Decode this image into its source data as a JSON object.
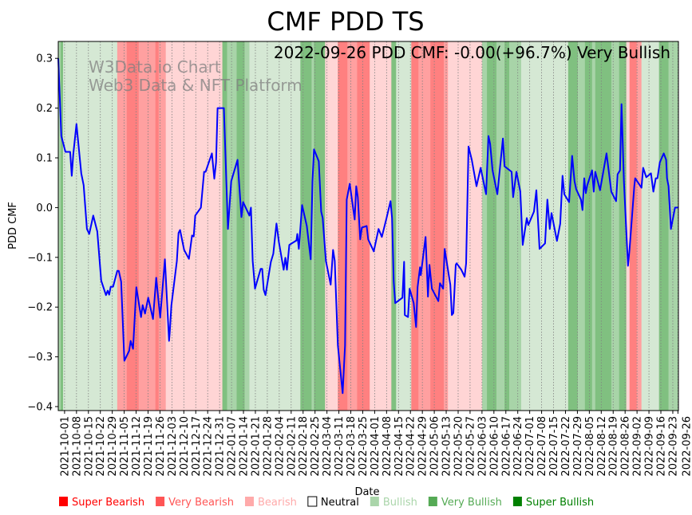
{
  "chart_data": {
    "type": "line",
    "title": "CMF PDD TS",
    "annotation": "2022-09-26 PDD CMF: -0.00(+96.7%) Very Bullish",
    "watermark": [
      "W3Data.io Chart",
      "Web3 Data & NFT Platform"
    ],
    "xlabel": "Date",
    "ylabel": "PDD CMF",
    "x_units": "days since 2021-10-01",
    "xlim": [
      -3.7,
      360.3
    ],
    "ylim": [
      -0.408,
      0.334
    ],
    "yticks": [
      0.3,
      0.2,
      0.1,
      0.0,
      -0.1,
      -0.2,
      -0.3,
      -0.4
    ],
    "ytick_labels": [
      "0.3",
      "0.2",
      "0.1",
      "0.0",
      "−0.1",
      "−0.2",
      "−0.3",
      "−0.4"
    ],
    "xticks": [
      0,
      7,
      14,
      21,
      28,
      35,
      42,
      49,
      56,
      63,
      70,
      77,
      84,
      91,
      98,
      105,
      112,
      119,
      126,
      133,
      140,
      147,
      154,
      161,
      168,
      175,
      182,
      189,
      196,
      203,
      210,
      217,
      224,
      231,
      238,
      245,
      252,
      259,
      266,
      273,
      280,
      287,
      294,
      301,
      308,
      315,
      322,
      329,
      336,
      343,
      350,
      357,
      360
    ],
    "xtick_labels": [
      "2021-10-01",
      "2021-10-08",
      "2021-10-15",
      "2021-10-22",
      "2021-10-29",
      "2021-11-05",
      "2021-11-12",
      "2021-11-19",
      "2021-11-26",
      "2021-12-03",
      "2021-12-10",
      "2021-12-17",
      "2021-12-24",
      "2021-12-31",
      "2022-01-07",
      "2022-01-14",
      "2022-01-21",
      "2022-01-28",
      "2022-02-04",
      "2022-02-11",
      "2022-02-18",
      "2022-02-25",
      "2022-03-04",
      "2022-03-11",
      "2022-03-18",
      "2022-03-25",
      "2022-04-01",
      "2022-04-08",
      "2022-04-15",
      "2022-04-22",
      "2022-04-29",
      "2022-05-06",
      "2022-05-13",
      "2022-05-20",
      "2022-05-27",
      "2022-06-03",
      "2022-06-10",
      "2022-06-17",
      "2022-06-24",
      "2022-07-01",
      "2022-07-08",
      "2022-07-15",
      "2022-07-22",
      "2022-07-29",
      "2022-08-05",
      "2022-08-12",
      "2022-08-19",
      "2022-08-26",
      "2022-09-02",
      "2022-09-09",
      "2022-09-16",
      "2022-09-23",
      "2022-09-26"
    ],
    "grid": "vertical dotted at x ticks",
    "legend_placement": "bottom",
    "legend": [
      {
        "label": "Super Bearish",
        "key": "super_bearish",
        "color": "#ff0000"
      },
      {
        "label": "Very Bearish",
        "key": "very_bearish",
        "color": "#ff5555"
      },
      {
        "label": "Bearish",
        "key": "bearish",
        "color": "#ffaaaa"
      },
      {
        "label": "Neutral",
        "key": "neutral",
        "color": "#ffffff"
      },
      {
        "label": "Bullish",
        "key": "bullish",
        "color": "#aad5aa"
      },
      {
        "label": "Very Bullish",
        "key": "very_bullish",
        "color": "#55aa55"
      },
      {
        "label": "Super Bullish",
        "key": "super_bullish",
        "color": "#008000"
      }
    ],
    "band_colors": {
      "bearish": "#ffd5d5",
      "very_bearish": "#ffa0a0",
      "super_bearish": "#ff8080",
      "bullish": "#d5e8d4",
      "very_bullish": "#a8d4a8",
      "super_bullish": "#80c080"
    },
    "bands": [
      [
        -3.7,
        -2.3,
        "very_bullish"
      ],
      [
        -2.3,
        -0.9,
        "super_bullish"
      ],
      [
        -0.9,
        30.9,
        "bullish"
      ],
      [
        30.9,
        36.5,
        "very_bearish"
      ],
      [
        36.5,
        43.5,
        "super_bearish"
      ],
      [
        43.5,
        49.6,
        "very_bearish"
      ],
      [
        49.6,
        53.3,
        "very_bearish"
      ],
      [
        53.3,
        55.2,
        "super_bearish"
      ],
      [
        55.2,
        59.4,
        "very_bearish"
      ],
      [
        59.4,
        92.6,
        "bearish"
      ],
      [
        92.6,
        95.4,
        "super_bullish"
      ],
      [
        95.4,
        101.0,
        "very_bullish"
      ],
      [
        101.0,
        105.7,
        "super_bullish"
      ],
      [
        105.7,
        108.5,
        "very_bullish"
      ],
      [
        108.5,
        138.4,
        "bullish"
      ],
      [
        138.4,
        145.0,
        "super_bullish"
      ],
      [
        145.0,
        146.4,
        "very_bullish"
      ],
      [
        146.4,
        152.9,
        "super_bullish"
      ],
      [
        152.9,
        160.4,
        "bearish"
      ],
      [
        160.4,
        166.0,
        "super_bearish"
      ],
      [
        166.0,
        171.7,
        "very_bearish"
      ],
      [
        171.7,
        179.1,
        "super_bearish"
      ],
      [
        179.1,
        191.8,
        "bearish"
      ],
      [
        191.8,
        194.6,
        "super_bullish"
      ],
      [
        194.6,
        203.5,
        "bullish"
      ],
      [
        203.5,
        207.7,
        "super_bearish"
      ],
      [
        207.7,
        214.7,
        "very_bearish"
      ],
      [
        214.7,
        222.6,
        "super_bearish"
      ],
      [
        222.6,
        225.0,
        "very_bearish"
      ],
      [
        225.0,
        245.1,
        "bearish"
      ],
      [
        245.1,
        247.9,
        "very_bullish"
      ],
      [
        247.9,
        253.5,
        "super_bullish"
      ],
      [
        253.5,
        258.2,
        "very_bullish"
      ],
      [
        258.2,
        261.0,
        "super_bullish"
      ],
      [
        261.0,
        268.0,
        "very_bullish"
      ],
      [
        268.0,
        295.6,
        "bullish"
      ],
      [
        295.6,
        301.2,
        "super_bullish"
      ],
      [
        301.2,
        305.4,
        "very_bullish"
      ],
      [
        305.4,
        309.6,
        "super_bullish"
      ],
      [
        309.6,
        311.5,
        "very_bullish"
      ],
      [
        311.5,
        320.9,
        "super_bullish"
      ],
      [
        320.9,
        325.5,
        "very_bullish"
      ],
      [
        325.5,
        329.7,
        "super_bullish"
      ],
      [
        329.7,
        331.6,
        "bearish"
      ],
      [
        331.6,
        335.8,
        "super_bearish"
      ],
      [
        335.8,
        338.6,
        "very_bearish"
      ],
      [
        338.6,
        348.9,
        "bullish"
      ],
      [
        348.9,
        354.5,
        "super_bullish"
      ],
      [
        354.5,
        360.3,
        "very_bullish"
      ]
    ],
    "series": [
      {
        "name": "PDD CMF",
        "color": "#0000ff",
        "points": [
          [
            -3.7,
            0.3
          ],
          [
            -1.9,
            0.144
          ],
          [
            0.5,
            0.112
          ],
          [
            3.3,
            0.112
          ],
          [
            4.2,
            0.064
          ],
          [
            5.1,
            0.107
          ],
          [
            7.0,
            0.168
          ],
          [
            9.8,
            0.069
          ],
          [
            11.2,
            0.045
          ],
          [
            13.1,
            -0.043
          ],
          [
            14.5,
            -0.053
          ],
          [
            16.8,
            -0.016
          ],
          [
            19.2,
            -0.048
          ],
          [
            21.5,
            -0.147
          ],
          [
            24.3,
            -0.176
          ],
          [
            25.3,
            -0.167
          ],
          [
            26.2,
            -0.175
          ],
          [
            27.1,
            -0.159
          ],
          [
            28.5,
            -0.159
          ],
          [
            30.9,
            -0.127
          ],
          [
            31.8,
            -0.127
          ],
          [
            33.2,
            -0.149
          ],
          [
            35.1,
            -0.308
          ],
          [
            37.9,
            -0.288
          ],
          [
            38.8,
            -0.268
          ],
          [
            40.2,
            -0.284
          ],
          [
            42.1,
            -0.16
          ],
          [
            44.9,
            -0.22
          ],
          [
            45.8,
            -0.196
          ],
          [
            47.2,
            -0.213
          ],
          [
            49.1,
            -0.181
          ],
          [
            51.9,
            -0.224
          ],
          [
            53.8,
            -0.141
          ],
          [
            56.1,
            -0.221
          ],
          [
            58.9,
            -0.104
          ],
          [
            61.3,
            -0.268
          ],
          [
            61.7,
            -0.253
          ],
          [
            62.7,
            -0.197
          ],
          [
            65.9,
            -0.107
          ],
          [
            66.9,
            -0.051
          ],
          [
            67.8,
            -0.045
          ],
          [
            70.2,
            -0.085
          ],
          [
            73.0,
            -0.103
          ],
          [
            74.8,
            -0.056
          ],
          [
            75.8,
            -0.058
          ],
          [
            76.7,
            -0.016
          ],
          [
            80.0,
            0.0
          ],
          [
            81.9,
            0.072
          ],
          [
            82.8,
            0.072
          ],
          [
            86.5,
            0.109
          ],
          [
            87.9,
            0.058
          ],
          [
            88.9,
            0.091
          ],
          [
            89.8,
            0.2
          ],
          [
            93.5,
            0.2
          ],
          [
            95.9,
            -0.043
          ],
          [
            97.8,
            0.053
          ],
          [
            101.5,
            0.096
          ],
          [
            103.8,
            -0.019
          ],
          [
            104.8,
            0.011
          ],
          [
            108.5,
            -0.016
          ],
          [
            109.4,
            0.0
          ],
          [
            110.4,
            -0.107
          ],
          [
            111.8,
            -0.163
          ],
          [
            115.1,
            -0.123
          ],
          [
            116.0,
            -0.123
          ],
          [
            116.9,
            -0.165
          ],
          [
            117.9,
            -0.176
          ],
          [
            121.1,
            -0.109
          ],
          [
            122.5,
            -0.093
          ],
          [
            124.4,
            -0.032
          ],
          [
            125.8,
            -0.069
          ],
          [
            128.6,
            -0.125
          ],
          [
            129.6,
            -0.101
          ],
          [
            130.5,
            -0.125
          ],
          [
            131.9,
            -0.075
          ],
          [
            136.1,
            -0.066
          ],
          [
            136.6,
            -0.053
          ],
          [
            137.5,
            -0.083
          ],
          [
            139.4,
            0.005
          ],
          [
            142.2,
            -0.037
          ],
          [
            144.5,
            -0.104
          ],
          [
            145.5,
            0.053
          ],
          [
            146.4,
            0.117
          ],
          [
            149.2,
            0.093
          ],
          [
            150.6,
            -0.008
          ],
          [
            151.5,
            -0.021
          ],
          [
            153.4,
            -0.107
          ],
          [
            156.2,
            -0.155
          ],
          [
            157.6,
            -0.085
          ],
          [
            158.6,
            -0.107
          ],
          [
            160.4,
            -0.277
          ],
          [
            163.2,
            -0.373
          ],
          [
            164.6,
            -0.277
          ],
          [
            165.6,
            0.016
          ],
          [
            167.4,
            0.048
          ],
          [
            170.3,
            -0.024
          ],
          [
            171.2,
            0.043
          ],
          [
            172.1,
            0.021
          ],
          [
            173.5,
            -0.064
          ],
          [
            174.5,
            -0.04
          ],
          [
            177.3,
            -0.037
          ],
          [
            178.2,
            -0.064
          ],
          [
            181.5,
            -0.088
          ],
          [
            184.3,
            -0.043
          ],
          [
            186.2,
            -0.059
          ],
          [
            189.0,
            -0.021
          ],
          [
            191.3,
            0.013
          ],
          [
            192.2,
            -0.021
          ],
          [
            193.2,
            -0.149
          ],
          [
            194.1,
            -0.192
          ],
          [
            198.3,
            -0.181
          ],
          [
            199.3,
            -0.109
          ],
          [
            199.7,
            -0.216
          ],
          [
            201.6,
            -0.22
          ],
          [
            202.5,
            -0.163
          ],
          [
            204.9,
            -0.192
          ],
          [
            206.3,
            -0.24
          ],
          [
            207.2,
            -0.16
          ],
          [
            208.6,
            -0.12
          ],
          [
            209.1,
            -0.136
          ],
          [
            211.9,
            -0.059
          ],
          [
            213.3,
            -0.179
          ],
          [
            214.2,
            -0.115
          ],
          [
            215.6,
            -0.163
          ],
          [
            219.4,
            -0.188
          ],
          [
            220.3,
            -0.152
          ],
          [
            222.2,
            -0.163
          ],
          [
            223.1,
            -0.083
          ],
          [
            226.4,
            -0.155
          ],
          [
            227.3,
            -0.216
          ],
          [
            228.2,
            -0.212
          ],
          [
            229.6,
            -0.115
          ],
          [
            230.1,
            -0.112
          ],
          [
            232.9,
            -0.125
          ],
          [
            234.8,
            -0.139
          ],
          [
            235.7,
            -0.112
          ],
          [
            237.1,
            0.123
          ],
          [
            239.0,
            0.096
          ],
          [
            241.8,
            0.043
          ],
          [
            244.2,
            0.08
          ],
          [
            247.4,
            0.027
          ],
          [
            248.8,
            0.144
          ],
          [
            249.8,
            0.128
          ],
          [
            251.2,
            0.075
          ],
          [
            254.0,
            0.027
          ],
          [
            257.3,
            0.139
          ],
          [
            258.2,
            0.083
          ],
          [
            262.4,
            0.072
          ],
          [
            263.3,
            0.021
          ],
          [
            265.2,
            0.072
          ],
          [
            267.5,
            0.032
          ],
          [
            268.9,
            -0.075
          ],
          [
            271.3,
            -0.021
          ],
          [
            272.2,
            -0.035
          ],
          [
            275.5,
            -0.008
          ],
          [
            276.9,
            0.035
          ],
          [
            278.8,
            -0.083
          ],
          [
            282.0,
            -0.072
          ],
          [
            283.4,
            0.016
          ],
          [
            284.8,
            -0.043
          ],
          [
            285.8,
            -0.011
          ],
          [
            289.0,
            -0.067
          ],
          [
            290.9,
            -0.032
          ],
          [
            292.3,
            0.064
          ],
          [
            293.3,
            0.027
          ],
          [
            296.1,
            0.011
          ],
          [
            297.9,
            0.104
          ],
          [
            299.3,
            0.053
          ],
          [
            300.3,
            0.037
          ],
          [
            303.1,
            0.016
          ],
          [
            304.0,
            -0.005
          ],
          [
            305.0,
            0.059
          ],
          [
            305.9,
            0.029
          ],
          [
            306.8,
            0.045
          ],
          [
            309.6,
            0.075
          ],
          [
            310.6,
            0.032
          ],
          [
            311.5,
            0.072
          ],
          [
            314.3,
            0.035
          ],
          [
            318.1,
            0.109
          ],
          [
            320.9,
            0.032
          ],
          [
            323.7,
            0.013
          ],
          [
            324.6,
            0.067
          ],
          [
            326.0,
            0.075
          ],
          [
            326.9,
            0.208
          ],
          [
            328.3,
            0.053
          ],
          [
            330.7,
            -0.117
          ],
          [
            331.6,
            -0.085
          ],
          [
            334.4,
            0.043
          ],
          [
            334.9,
            0.059
          ],
          [
            338.6,
            0.04
          ],
          [
            339.6,
            0.08
          ],
          [
            341.4,
            0.061
          ],
          [
            344.2,
            0.069
          ],
          [
            345.6,
            0.032
          ],
          [
            347.0,
            0.059
          ],
          [
            348.0,
            0.059
          ],
          [
            349.4,
            0.091
          ],
          [
            351.7,
            0.109
          ],
          [
            353.1,
            0.096
          ],
          [
            353.6,
            0.059
          ],
          [
            354.5,
            0.043
          ],
          [
            355.9,
            -0.043
          ],
          [
            358.3,
            0.0
          ],
          [
            360.3,
            0.0
          ]
        ]
      }
    ]
  }
}
